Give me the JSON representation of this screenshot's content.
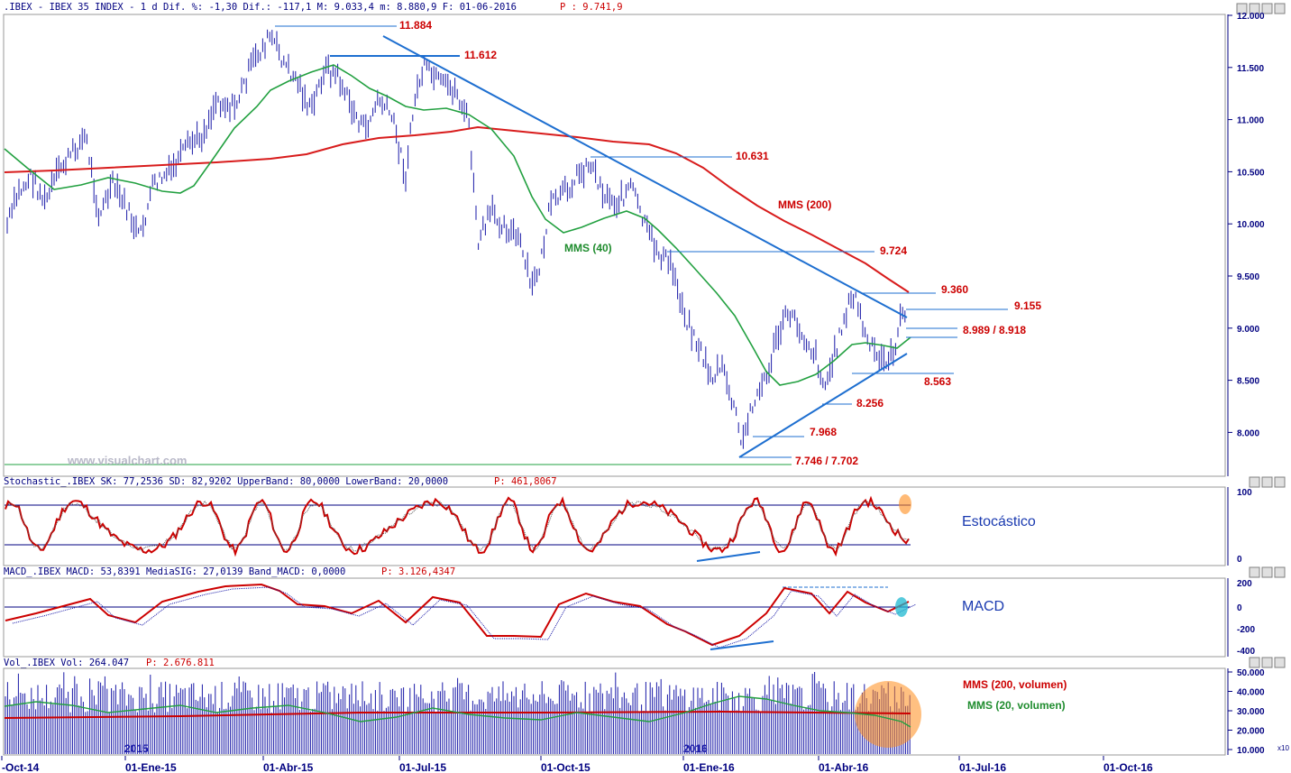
{
  "colors": {
    "price_bars": "#1a1aa8",
    "mms200": "#d81c1c",
    "mms40": "#22a040",
    "trend": "#1e6fd0",
    "hdr_red": "#cc0000",
    "hdr_blue": "#000080",
    "axis": "#000080"
  },
  "header": {
    "main": ".IBEX - IBEX 35 INDEX -  1 d Dif. %: -1,30 Dif.: -117,1 M: 9.033,4 m: 8.880,9 F: 01-06-2016",
    "main_p": "P : 9.741,9",
    "stoch": "Stochastic_.IBEX SK: 77,2536 SD: 82,9202 UpperBand: 80,0000 LowerBand: 20,0000",
    "stoch_p": "P: 461,8067",
    "macd": "MACD_.IBEX MACD: 53,8391 MediaSIG: 27,0139 Band_MACD: 0,0000",
    "macd_p": "P: 3.126,4347",
    "vol": "Vol_.IBEX Vol: 264.047",
    "vol_p": "P: 2.676.811"
  },
  "watermark": "www.visualchart.com",
  "chart_data": {
    "type": "line",
    "x_ticks": [
      "-Oct-14",
      "01-Ene-15",
      "01-Abr-15",
      "01-Jul-15",
      "01-Oct-15",
      "01-Ene-16",
      "01-Abr-16",
      "01-Jul-16",
      "01-Oct-16"
    ],
    "year_marks": [
      "2015",
      "2016"
    ],
    "price_axis": {
      "ticks": [
        "12.000",
        "11.500",
        "11.000",
        "10.500",
        "10.000",
        "9.500",
        "9.000",
        "8.500",
        "8.000"
      ],
      "ylim": [
        7500,
        12000
      ]
    },
    "price_series": [
      {
        "name": "MMS (200)",
        "x": [
          0.0,
          0.1,
          0.2,
          0.25,
          0.3,
          0.35,
          0.4,
          0.45,
          0.5,
          0.55,
          0.6,
          0.65,
          0.7,
          0.75,
          0.8,
          0.85,
          0.9,
          0.95,
          1.0
        ],
        "y": [
          10480,
          10520,
          10560,
          10600,
          10680,
          10720,
          10820,
          10900,
          10940,
          10920,
          10820,
          10700,
          10500,
          10100,
          9900,
          9700,
          9550,
          9380,
          9340
        ]
      },
      {
        "name": "MMS (40)",
        "x": [
          0.0,
          0.05,
          0.1,
          0.15,
          0.2,
          0.25,
          0.3,
          0.35,
          0.4,
          0.45,
          0.5,
          0.55,
          0.6,
          0.65,
          0.7,
          0.75,
          0.8,
          0.85,
          0.9,
          0.95,
          1.0
        ],
        "y": [
          10700,
          10350,
          10450,
          10350,
          10300,
          10700,
          11400,
          11500,
          11200,
          10900,
          11000,
          10400,
          9900,
          10100,
          9800,
          9200,
          8600,
          8700,
          8850,
          8800,
          8900
        ]
      }
    ],
    "price_levels": [
      "11.884",
      "11.612",
      "10.631",
      "9.724",
      "9.360",
      "9.155",
      "8.989 / 8.918",
      "8.563",
      "8.256",
      "7.968",
      "7.746 / 7.702"
    ],
    "price_annotations": [
      "MMS (200)",
      "MMS (40)"
    ],
    "stoch_axis": {
      "ticks": [
        "100",
        "0"
      ]
    },
    "stoch_label": "Estocástico",
    "macd_axis": {
      "ticks": [
        "200",
        "0",
        "-200",
        "-400"
      ]
    },
    "macd_label": "MACD",
    "vol_axis": {
      "ticks": [
        "50.000",
        "40.000",
        "30.000",
        "20.000",
        "10.000"
      ],
      "unit": "x10"
    },
    "vol_series_labels": [
      "MMS (200, volumen)",
      "MMS (20, volumen)"
    ]
  }
}
